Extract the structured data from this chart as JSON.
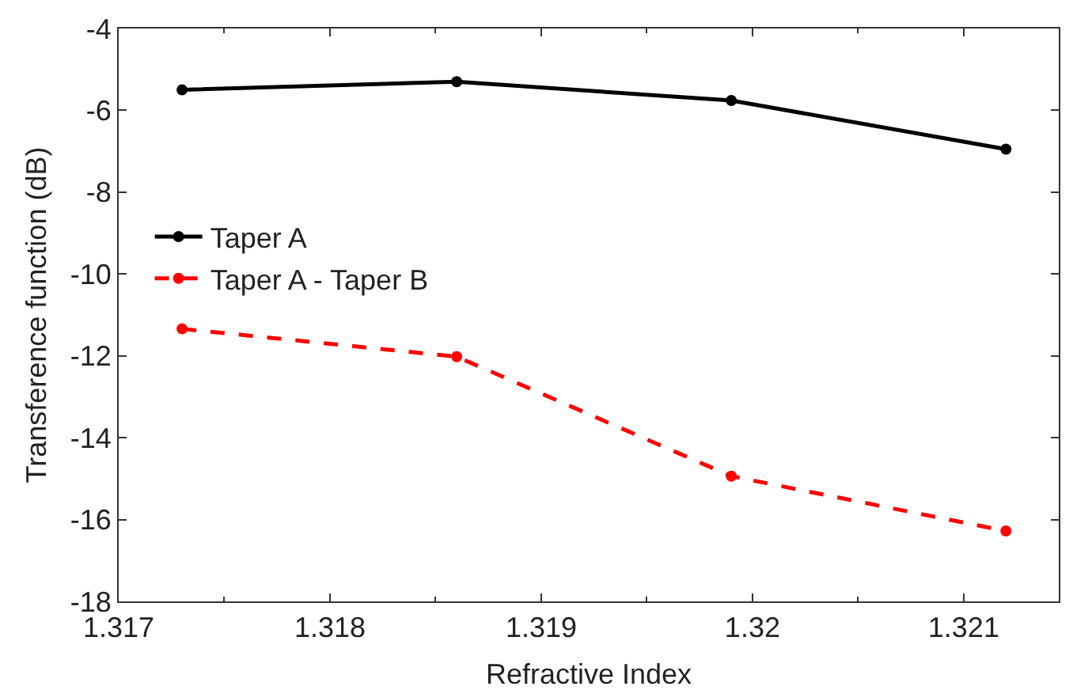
{
  "chart_data": {
    "type": "line",
    "xlabel": "Refractive Index",
    "ylabel": "Transference function (dB)",
    "x": [
      1.3173,
      1.3186,
      1.3199,
      1.3212
    ],
    "series": [
      {
        "name": "Taper A",
        "color": "#000000",
        "values": [
          -5.5,
          -5.3,
          -5.76,
          -6.95
        ],
        "line_style": "solid"
      },
      {
        "name": "Taper A - Taper B",
        "color": "#ff0000",
        "values": [
          -11.34,
          -12.02,
          -14.94,
          -16.28
        ],
        "line_style": "dashed"
      }
    ],
    "xlim": [
      1.317,
      1.32145
    ],
    "xticks": [
      1.317,
      1.318,
      1.319,
      {
        "value": 1.32,
        "label": "1.32"
      },
      1.321
    ],
    "ylim": [
      -18,
      -4
    ],
    "yticks": [
      -18,
      -16,
      -14,
      -12,
      -10,
      -8,
      -6,
      -4
    ],
    "grid": false,
    "legend": "left",
    "marker": "circle"
  }
}
